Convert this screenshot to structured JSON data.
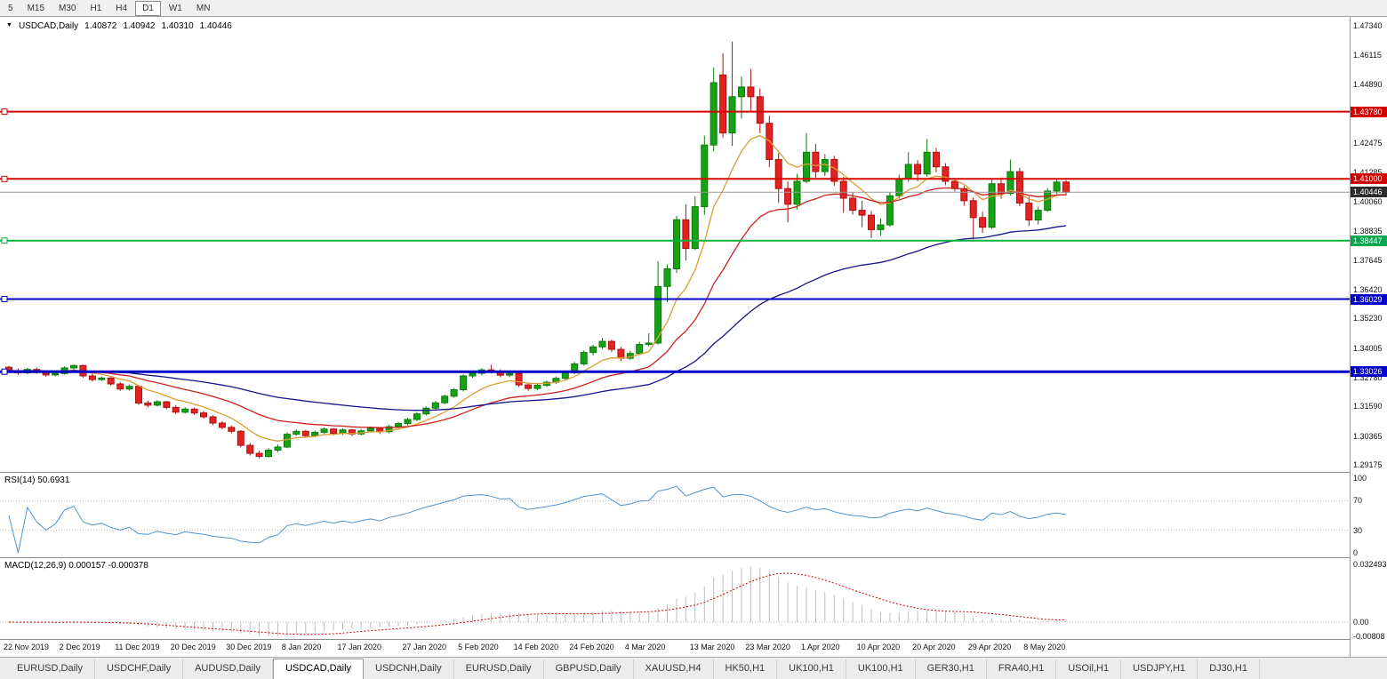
{
  "toolbar": {
    "timeframes": [
      "5",
      "M15",
      "M30",
      "H1",
      "H4",
      "D1",
      "W1",
      "MN"
    ],
    "active": "D1"
  },
  "chart_header": {
    "symbol_label": "USDCAD,Daily",
    "open": "1.40872",
    "high": "1.40942",
    "low": "1.40310",
    "close": "1.40446"
  },
  "price_axis": {
    "labels": [
      "1.47340",
      "1.46115",
      "1.44890",
      "1.42475",
      "1.41285",
      "1.40060",
      "1.38835",
      "1.37645",
      "1.36420",
      "1.35230",
      "1.34005",
      "1.32780",
      "1.31590",
      "1.30365",
      "1.29175"
    ],
    "badges": [
      {
        "value": "1.43780",
        "color": "#d60000"
      },
      {
        "value": "1.41000",
        "color": "#d60000"
      },
      {
        "value": "1.40446",
        "color": "#2b2b2b"
      },
      {
        "value": "1.38447",
        "color": "#00a84f"
      },
      {
        "value": "1.36029",
        "color": "#0000c8"
      },
      {
        "value": "1.33026",
        "color": "#0000c8"
      }
    ]
  },
  "indicators": {
    "rsi": {
      "label": "RSI(14) 50.6931",
      "levels": [
        "100",
        "70",
        "30",
        "0"
      ]
    },
    "macd": {
      "label": "MACD(12,26,9) 0.000157 -0.000378",
      "levels": [
        "0.032493",
        "0.00",
        "-0.00808"
      ]
    }
  },
  "date_axis": {
    "ticks": [
      {
        "i": 0,
        "label": "22 Nov 2019"
      },
      {
        "i": 6,
        "label": "2 Dec 2019"
      },
      {
        "i": 12,
        "label": "11 Dec 2019"
      },
      {
        "i": 18,
        "label": "20 Dec 2019"
      },
      {
        "i": 24,
        "label": "30 Dec 2019"
      },
      {
        "i": 30,
        "label": "8 Jan 2020"
      },
      {
        "i": 36,
        "label": "17 Jan 2020"
      },
      {
        "i": 43,
        "label": "27 Jan 2020"
      },
      {
        "i": 49,
        "label": "5 Feb 2020"
      },
      {
        "i": 55,
        "label": "14 Feb 2020"
      },
      {
        "i": 61,
        "label": "24 Feb 2020"
      },
      {
        "i": 67,
        "label": "4 Mar 2020"
      },
      {
        "i": 74,
        "label": "13 Mar 2020"
      },
      {
        "i": 80,
        "label": "23 Mar 2020"
      },
      {
        "i": 86,
        "label": "1 Apr 2020"
      },
      {
        "i": 92,
        "label": "10 Apr 2020"
      },
      {
        "i": 98,
        "label": "20 Apr 2020"
      },
      {
        "i": 104,
        "label": "29 Apr 2020"
      },
      {
        "i": 110,
        "label": "8 May 2020"
      }
    ]
  },
  "tabs": {
    "items": [
      "EURUSD,Daily",
      "USDCHF,Daily",
      "AUDUSD,Daily",
      "USDCAD,Daily",
      "USDCNH,Daily",
      "EURUSD,Daily",
      "GBPUSD,Daily",
      "XAUUSD,H4",
      "HK50,H1",
      "UK100,H1",
      "UK100,H1",
      "GER30,H1",
      "FRA40,H1",
      "USOil,H1",
      "USDJPY,H1",
      "DJ30,H1"
    ],
    "active_index": 3
  },
  "chart_data": {
    "type": "candlestick-ohlc",
    "symbol": "USDCAD",
    "timeframe": "Daily",
    "y_range": [
      1.2888,
      1.477
    ],
    "current_price": 1.40446,
    "hlines": [
      {
        "price": 1.4378,
        "color": "#d60000",
        "width": 2
      },
      {
        "price": 1.41,
        "color": "#d60000",
        "width": 2
      },
      {
        "price": 1.38447,
        "color": "#00b339",
        "width": 2
      },
      {
        "price": 1.36029,
        "color": "#0000c8",
        "width": 2
      },
      {
        "price": 1.33026,
        "color": "#0000c8",
        "width": 3
      }
    ],
    "ma": [
      {
        "type": "ema",
        "period": 8,
        "color": "#dd9c33"
      },
      {
        "type": "ema",
        "period": 21,
        "color": "#cc1f1f"
      },
      {
        "type": "ema",
        "period": 55,
        "color": "#14148c"
      }
    ],
    "rsi_period": 14,
    "macd": {
      "fast": 12,
      "slow": 26,
      "signal": 9
    },
    "colors": {
      "up": "#15a315",
      "up_stroke": "#0b7a0b",
      "down": "#e32222",
      "down_stroke": "#aa1111",
      "rsi": "#4f94cd",
      "macd_bar": "#bdbdbd",
      "macd_signal": "#cc0000",
      "current_price_line": "#9a9a9a"
    },
    "candles": [
      [
        1.3321,
        1.3326,
        1.3298,
        1.3307
      ],
      [
        1.3307,
        1.3315,
        1.3289,
        1.3298
      ],
      [
        1.3298,
        1.3318,
        1.3292,
        1.3312
      ],
      [
        1.3312,
        1.332,
        1.3294,
        1.3301
      ],
      [
        1.3301,
        1.3309,
        1.3282,
        1.3289
      ],
      [
        1.3289,
        1.3303,
        1.3283,
        1.3295
      ],
      [
        1.3295,
        1.3325,
        1.329,
        1.3318
      ],
      [
        1.3318,
        1.3333,
        1.331,
        1.3328
      ],
      [
        1.3328,
        1.3332,
        1.3278,
        1.3285
      ],
      [
        1.3285,
        1.3294,
        1.3262,
        1.327
      ],
      [
        1.327,
        1.3283,
        1.3264,
        1.3276
      ],
      [
        1.3276,
        1.328,
        1.3244,
        1.3252
      ],
      [
        1.3252,
        1.326,
        1.3223,
        1.3231
      ],
      [
        1.3231,
        1.3249,
        1.3224,
        1.3242
      ],
      [
        1.3242,
        1.3246,
        1.3165,
        1.3173
      ],
      [
        1.3173,
        1.3183,
        1.3155,
        1.3164
      ],
      [
        1.3164,
        1.3185,
        1.3158,
        1.3178
      ],
      [
        1.3178,
        1.3182,
        1.3147,
        1.3155
      ],
      [
        1.3155,
        1.3164,
        1.3127,
        1.3135
      ],
      [
        1.3135,
        1.3156,
        1.3129,
        1.3148
      ],
      [
        1.3148,
        1.3154,
        1.3124,
        1.3132
      ],
      [
        1.3132,
        1.314,
        1.3108,
        1.3116
      ],
      [
        1.3116,
        1.3122,
        1.3082,
        1.309
      ],
      [
        1.309,
        1.3098,
        1.3064,
        1.3072
      ],
      [
        1.3072,
        1.3079,
        1.3047,
        1.3056
      ],
      [
        1.3056,
        1.3061,
        1.2989,
        1.2998
      ],
      [
        1.2998,
        1.3008,
        1.2956,
        1.2965
      ],
      [
        1.2965,
        1.2976,
        1.2944,
        1.2952
      ],
      [
        1.2952,
        1.2986,
        1.2947,
        1.2978
      ],
      [
        1.2978,
        1.3001,
        1.297,
        1.2991
      ],
      [
        1.2991,
        1.3052,
        1.2986,
        1.3044
      ],
      [
        1.3044,
        1.3064,
        1.3037,
        1.3056
      ],
      [
        1.3056,
        1.3062,
        1.3029,
        1.3038
      ],
      [
        1.3038,
        1.3059,
        1.3031,
        1.3052
      ],
      [
        1.3052,
        1.3072,
        1.3045,
        1.3065
      ],
      [
        1.3065,
        1.307,
        1.3039,
        1.3048
      ],
      [
        1.3048,
        1.3069,
        1.3041,
        1.3062
      ],
      [
        1.3062,
        1.3066,
        1.3036,
        1.3045
      ],
      [
        1.3045,
        1.3065,
        1.3039,
        1.3058
      ],
      [
        1.3058,
        1.3076,
        1.3051,
        1.3069
      ],
      [
        1.3069,
        1.3073,
        1.3045,
        1.3054
      ],
      [
        1.3054,
        1.3082,
        1.3048,
        1.3075
      ],
      [
        1.3075,
        1.3095,
        1.3069,
        1.3088
      ],
      [
        1.3088,
        1.3112,
        1.3081,
        1.3105
      ],
      [
        1.3105,
        1.3135,
        1.3099,
        1.3128
      ],
      [
        1.3128,
        1.3159,
        1.3121,
        1.3152
      ],
      [
        1.3152,
        1.3181,
        1.3146,
        1.3174
      ],
      [
        1.3174,
        1.3208,
        1.3168,
        1.3201
      ],
      [
        1.3201,
        1.3235,
        1.3195,
        1.3228
      ],
      [
        1.3228,
        1.3292,
        1.3221,
        1.3285
      ],
      [
        1.3285,
        1.3303,
        1.3276,
        1.3296
      ],
      [
        1.3296,
        1.3317,
        1.3288,
        1.331
      ],
      [
        1.331,
        1.3331,
        1.3295,
        1.3302
      ],
      [
        1.3302,
        1.3312,
        1.3279,
        1.3288
      ],
      [
        1.3288,
        1.3302,
        1.328,
        1.3295
      ],
      [
        1.3295,
        1.3299,
        1.3239,
        1.3248
      ],
      [
        1.3248,
        1.3256,
        1.3224,
        1.3233
      ],
      [
        1.3233,
        1.3253,
        1.3226,
        1.3246
      ],
      [
        1.3246,
        1.3266,
        1.3239,
        1.3259
      ],
      [
        1.3259,
        1.3283,
        1.3252,
        1.3275
      ],
      [
        1.3275,
        1.3305,
        1.3269,
        1.3298
      ],
      [
        1.3298,
        1.3343,
        1.3292,
        1.3335
      ],
      [
        1.3335,
        1.339,
        1.3328,
        1.3382
      ],
      [
        1.3382,
        1.3414,
        1.337,
        1.3405
      ],
      [
        1.3405,
        1.3442,
        1.3396,
        1.3428
      ],
      [
        1.3428,
        1.3435,
        1.3384,
        1.3395
      ],
      [
        1.3395,
        1.3404,
        1.3347,
        1.3358
      ],
      [
        1.3358,
        1.3389,
        1.3351,
        1.3378
      ],
      [
        1.3378,
        1.3426,
        1.3371,
        1.3415
      ],
      [
        1.3415,
        1.3461,
        1.3406,
        1.3421
      ],
      [
        1.3421,
        1.3759,
        1.3415,
        1.3655
      ],
      [
        1.3655,
        1.3746,
        1.3591,
        1.3728
      ],
      [
        1.3728,
        1.3947,
        1.3711,
        1.3931
      ],
      [
        1.3931,
        1.3996,
        1.3763,
        1.3812
      ],
      [
        1.3812,
        1.4028,
        1.3805,
        1.3985
      ],
      [
        1.3985,
        1.4279,
        1.3951,
        1.424
      ],
      [
        1.424,
        1.456,
        1.4214,
        1.4498
      ],
      [
        1.453,
        1.4619,
        1.4271,
        1.429
      ],
      [
        1.429,
        1.4668,
        1.4236,
        1.444
      ],
      [
        1.444,
        1.4523,
        1.4349,
        1.448
      ],
      [
        1.448,
        1.4555,
        1.4381,
        1.444
      ],
      [
        1.444,
        1.4474,
        1.4289,
        1.433
      ],
      [
        1.433,
        1.4361,
        1.4149,
        1.418
      ],
      [
        1.418,
        1.4207,
        1.4,
        1.406
      ],
      [
        1.406,
        1.4089,
        1.392,
        1.3995
      ],
      [
        1.3995,
        1.4121,
        1.3974,
        1.409
      ],
      [
        1.409,
        1.429,
        1.4082,
        1.421
      ],
      [
        1.421,
        1.4244,
        1.4105,
        1.413
      ],
      [
        1.413,
        1.4203,
        1.4112,
        1.418
      ],
      [
        1.418,
        1.4195,
        1.4071,
        1.409
      ],
      [
        1.409,
        1.4108,
        1.396,
        1.402
      ],
      [
        1.402,
        1.4046,
        1.3952,
        1.397
      ],
      [
        1.397,
        1.4009,
        1.39,
        1.395
      ],
      [
        1.395,
        1.3968,
        1.3855,
        1.389
      ],
      [
        1.389,
        1.3937,
        1.3865,
        1.391
      ],
      [
        1.391,
        1.4045,
        1.3902,
        1.403
      ],
      [
        1.403,
        1.4117,
        1.4018,
        1.41
      ],
      [
        1.41,
        1.421,
        1.4088,
        1.416
      ],
      [
        1.416,
        1.4177,
        1.409,
        1.412
      ],
      [
        1.412,
        1.4265,
        1.4109,
        1.421
      ],
      [
        1.421,
        1.4228,
        1.4128,
        1.415
      ],
      [
        1.415,
        1.4165,
        1.4073,
        1.409
      ],
      [
        1.409,
        1.4105,
        1.4048,
        1.406
      ],
      [
        1.406,
        1.4072,
        1.3989,
        1.401
      ],
      [
        1.401,
        1.4023,
        1.385,
        1.394
      ],
      [
        1.394,
        1.3964,
        1.3876,
        1.39
      ],
      [
        1.39,
        1.4102,
        1.3893,
        1.408
      ],
      [
        1.408,
        1.4106,
        1.4018,
        1.404
      ],
      [
        1.404,
        1.418,
        1.4031,
        1.413
      ],
      [
        1.413,
        1.4145,
        1.3987,
        1.4
      ],
      [
        1.4,
        1.4026,
        1.3905,
        1.393
      ],
      [
        1.393,
        1.3985,
        1.3911,
        1.397
      ],
      [
        1.397,
        1.4062,
        1.3963,
        1.405
      ],
      [
        1.405,
        1.4102,
        1.4038,
        1.4087
      ],
      [
        1.40872,
        1.40942,
        1.4031,
        1.40446
      ]
    ]
  }
}
